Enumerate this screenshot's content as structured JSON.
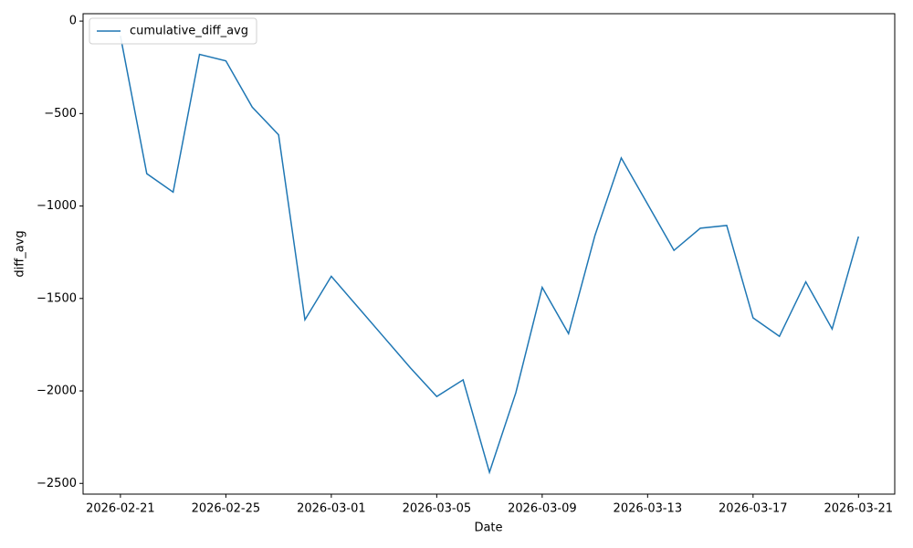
{
  "chart_data": {
    "type": "line",
    "x": [
      "2026-02-21",
      "2026-02-22",
      "2026-02-23",
      "2026-02-24",
      "2026-02-25",
      "2026-02-26",
      "2026-02-27",
      "2026-02-28",
      "2026-03-01",
      "2026-03-02",
      "2026-03-03",
      "2026-03-04",
      "2026-03-05",
      "2026-03-06",
      "2026-03-07",
      "2026-03-08",
      "2026-03-09",
      "2026-03-10",
      "2026-03-11",
      "2026-03-12",
      "2026-03-13",
      "2026-03-14",
      "2026-03-15",
      "2026-03-16",
      "2026-03-17",
      "2026-03-18",
      "2026-03-19",
      "2026-03-20",
      "2026-03-21"
    ],
    "series": [
      {
        "name": "cumulative_diff_avg",
        "color": "#1f77b4",
        "values": [
          -80,
          -825,
          -925,
          -180,
          -215,
          -465,
          -615,
          -1615,
          -1380,
          -1545,
          -1710,
          -1875,
          -2030,
          -1940,
          -2440,
          -2010,
          -1440,
          -1690,
          -1160,
          -740,
          -990,
          -1240,
          -1120,
          -1105,
          -1605,
          -1705,
          -1410,
          -1665,
          -1165
        ]
      }
    ],
    "xlabel": "Date",
    "ylabel": "diff_avg",
    "xlim": [
      "2026-02-19T14:00",
      "2026-03-22T09:00"
    ],
    "xticks": [
      "2026-02-21",
      "2026-02-25",
      "2026-03-01",
      "2026-03-05",
      "2026-03-09",
      "2026-03-13",
      "2026-03-17",
      "2026-03-21"
    ],
    "ylim": [
      -2558,
      40
    ],
    "yticks": [
      {
        "value": -2500,
        "label": "−2500"
      },
      {
        "value": -2000,
        "label": "−2000"
      },
      {
        "value": -1500,
        "label": "−1500"
      },
      {
        "value": -1000,
        "label": "−1000"
      },
      {
        "value": -500,
        "label": "−500"
      },
      0
    ],
    "legend": "upper left"
  }
}
